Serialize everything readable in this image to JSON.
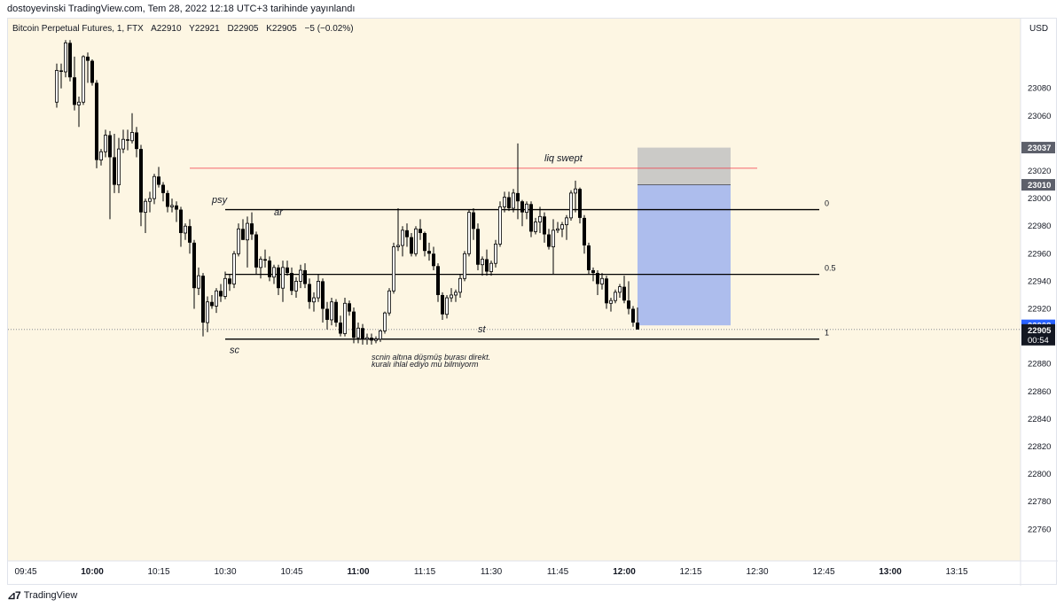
{
  "header": {
    "published_by": "dostoyevinski TradingView.com, Tem 28, 2022 12:18 UTC+3 tarihinde yayınlandı"
  },
  "symbol_info": {
    "name": "Bitcoin Perpetual Futures, 1, FTX",
    "open": "A22910",
    "high": "Y22921",
    "low": "D22905",
    "close": "K22905",
    "change": "−5 (−0.02%)"
  },
  "footer": {
    "brand": "TradingView"
  },
  "chart_data": {
    "type": "candlestick",
    "currency": "USD",
    "y_ticks": [
      22760,
      22780,
      22800,
      22820,
      22840,
      22860,
      22880,
      22920,
      22940,
      22960,
      22980,
      23000,
      23020,
      23060,
      23080
    ],
    "x_ticks": [
      {
        "time": "09:45",
        "bold": false
      },
      {
        "time": "10:00",
        "bold": true
      },
      {
        "time": "10:15",
        "bold": false
      },
      {
        "time": "10:30",
        "bold": false
      },
      {
        "time": "10:45",
        "bold": false
      },
      {
        "time": "11:00",
        "bold": true
      },
      {
        "time": "11:15",
        "bold": false
      },
      {
        "time": "11:30",
        "bold": false
      },
      {
        "time": "11:45",
        "bold": false
      },
      {
        "time": "12:00",
        "bold": true
      },
      {
        "time": "12:15",
        "bold": false
      },
      {
        "time": "12:30",
        "bold": false
      },
      {
        "time": "12:45",
        "bold": false
      },
      {
        "time": "13:00",
        "bold": true
      },
      {
        "time": "13:15",
        "bold": false
      }
    ],
    "first_candle_time": "09:52",
    "candles": [
      [
        23070,
        23098,
        23066,
        23093
      ],
      [
        23093,
        23098,
        23080,
        23092
      ],
      [
        23092,
        23115,
        23088,
        23113
      ],
      [
        23113,
        23115,
        23085,
        23088
      ],
      [
        23088,
        23103,
        23064,
        23068
      ],
      [
        23068,
        23074,
        23052,
        23070
      ],
      [
        23070,
        23104,
        23068,
        23103
      ],
      [
        23103,
        23106,
        23084,
        23100
      ],
      [
        23100,
        23101,
        23082,
        23084
      ],
      [
        23084,
        23086,
        23022,
        23028
      ],
      [
        23028,
        23036,
        23024,
        23034
      ],
      [
        23034,
        23050,
        23030,
        23046
      ],
      [
        23046,
        23049,
        22985,
        23030
      ],
      [
        23030,
        23047,
        23004,
        23010
      ],
      [
        23010,
        23044,
        23004,
        23036
      ],
      [
        23036,
        23050,
        23033,
        23043
      ],
      [
        23043,
        23050,
        23035,
        23042
      ],
      [
        23042,
        23062,
        23040,
        23048
      ],
      [
        23048,
        23052,
        23030,
        23036
      ],
      [
        23036,
        23039,
        22980,
        22990
      ],
      [
        22990,
        23000,
        22975,
        22998
      ],
      [
        22998,
        23005,
        22990,
        23000
      ],
      [
        23000,
        23018,
        22996,
        23016
      ],
      [
        23016,
        23023,
        23008,
        23010
      ],
      [
        23010,
        23012,
        22998,
        23004
      ],
      [
        23004,
        23006,
        22990,
        22994
      ],
      [
        22994,
        23000,
        22990,
        22995
      ],
      [
        22995,
        22998,
        22983,
        22992
      ],
      [
        22992,
        22994,
        22965,
        22975
      ],
      [
        22975,
        22982,
        22970,
        22980
      ],
      [
        22980,
        22985,
        22960,
        22968
      ],
      [
        22968,
        22970,
        22920,
        22935
      ],
      [
        22935,
        22950,
        22930,
        22944
      ],
      [
        22944,
        22946,
        22900,
        22910
      ],
      [
        22910,
        22929,
        22903,
        22925
      ],
      [
        22925,
        22930,
        22920,
        22922
      ],
      [
        22922,
        22935,
        22917,
        22933
      ],
      [
        22933,
        22938,
        22925,
        22929
      ],
      [
        22929,
        22947,
        22927,
        22942
      ],
      [
        22942,
        22945,
        22933,
        22938
      ],
      [
        22938,
        22962,
        22935,
        22960
      ],
      [
        22960,
        22982,
        22958,
        22978
      ],
      [
        22978,
        22985,
        22970,
        22970
      ],
      [
        22970,
        22987,
        22950,
        22982
      ],
      [
        22982,
        22990,
        22970,
        22974
      ],
      [
        22974,
        22976,
        22945,
        22950
      ],
      [
        22950,
        22958,
        22942,
        22956
      ],
      [
        22956,
        22963,
        22950,
        22955
      ],
      [
        22955,
        22958,
        22940,
        22943
      ],
      [
        22943,
        22952,
        22938,
        22950
      ],
      [
        22950,
        22952,
        22930,
        22935
      ],
      [
        22935,
        22955,
        22925,
        22950
      ],
      [
        22950,
        22955,
        22944,
        22946
      ],
      [
        22946,
        22950,
        22930,
        22933
      ],
      [
        22933,
        22943,
        22928,
        22940
      ],
      [
        22940,
        22952,
        22935,
        22948
      ],
      [
        22948,
        22953,
        22935,
        22938
      ],
      [
        22938,
        22942,
        22920,
        22925
      ],
      [
        22925,
        22932,
        22918,
        22928
      ],
      [
        22928,
        22945,
        22925,
        22940
      ],
      [
        22940,
        22942,
        22910,
        22920
      ],
      [
        22920,
        22925,
        22905,
        22912
      ],
      [
        22912,
        22928,
        22908,
        22925
      ],
      [
        22925,
        22927,
        22907,
        22910
      ],
      [
        22910,
        22915,
        22900,
        22902
      ],
      [
        22902,
        22928,
        22900,
        22924
      ],
      [
        22924,
        22926,
        22915,
        22918
      ],
      [
        22918,
        22921,
        22895,
        22899
      ],
      [
        22899,
        22910,
        22895,
        22906
      ],
      [
        22906,
        22909,
        22894,
        22898
      ],
      [
        22898,
        22902,
        22894,
        22899
      ],
      [
        22899,
        22902,
        22894,
        22897
      ],
      [
        22897,
        22900,
        22895,
        22898
      ],
      [
        22898,
        22905,
        22896,
        22904
      ],
      [
        22904,
        22918,
        22902,
        22917
      ],
      [
        22917,
        22935,
        22915,
        22933
      ],
      [
        22933,
        22968,
        22931,
        22965
      ],
      [
        22965,
        22993,
        22962,
        22966
      ],
      [
        22966,
        22980,
        22958,
        22977
      ],
      [
        22977,
        22982,
        22965,
        22972
      ],
      [
        22972,
        22975,
        22958,
        22960
      ],
      [
        22960,
        22980,
        22958,
        22978
      ],
      [
        22978,
        22985,
        22970,
        22975
      ],
      [
        22975,
        22976,
        22958,
        22962
      ],
      [
        22962,
        22968,
        22955,
        22960
      ],
      [
        22960,
        22965,
        22948,
        22951
      ],
      [
        22951,
        22953,
        22925,
        22930
      ],
      [
        22930,
        22932,
        22912,
        22916
      ],
      [
        22916,
        22930,
        22913,
        22928
      ],
      [
        22928,
        22935,
        22925,
        22930
      ],
      [
        22930,
        22934,
        22925,
        22932
      ],
      [
        22932,
        22945,
        22928,
        22942
      ],
      [
        22942,
        22962,
        22940,
        22960
      ],
      [
        22960,
        22992,
        22958,
        22990
      ],
      [
        22990,
        22993,
        22970,
        22978
      ],
      [
        22978,
        22982,
        22948,
        22952
      ],
      [
        22952,
        22958,
        22944,
        22956
      ],
      [
        22956,
        22963,
        22944,
        22947
      ],
      [
        22947,
        22955,
        22944,
        22953
      ],
      [
        22953,
        22970,
        22950,
        22967
      ],
      [
        22967,
        22998,
        22965,
        22994
      ],
      [
        22994,
        23005,
        22990,
        23001
      ],
      [
        23001,
        23005,
        22991,
        22993
      ],
      [
        22993,
        23007,
        22990,
        23004
      ],
      [
        23004,
        23040,
        22985,
        22998
      ],
      [
        22998,
        22999,
        22980,
        22990
      ],
      [
        22990,
        22998,
        22985,
        22996
      ],
      [
        22996,
        22998,
        22972,
        22976
      ],
      [
        22976,
        22986,
        22974,
        22983
      ],
      [
        22983,
        22994,
        22975,
        22987
      ],
      [
        22987,
        22990,
        22968,
        22974
      ],
      [
        22974,
        22978,
        22963,
        22965
      ],
      [
        22965,
        22985,
        22945,
        22977
      ],
      [
        22977,
        22983,
        22975,
        22978
      ],
      [
        22978,
        22983,
        22972,
        22981
      ],
      [
        22981,
        22988,
        22970,
        22986
      ],
      [
        22986,
        23006,
        22984,
        23004
      ],
      [
        23004,
        23013,
        22990,
        23007
      ],
      [
        23007,
        23008,
        22982,
        22986
      ],
      [
        22986,
        22988,
        22960,
        22966
      ],
      [
        22966,
        22968,
        22945,
        22948
      ],
      [
        22948,
        22950,
        22940,
        22946
      ],
      [
        22946,
        22948,
        22930,
        22938
      ],
      [
        22938,
        22946,
        22934,
        22942
      ],
      [
        22942,
        22944,
        22920,
        22924
      ],
      [
        22924,
        22928,
        22918,
        22926
      ],
      [
        22926,
        22934,
        22924,
        22932
      ],
      [
        22932,
        22938,
        22928,
        22936
      ],
      [
        22936,
        22944,
        22924,
        22926
      ],
      [
        22926,
        22940,
        22916,
        22920
      ],
      [
        22920,
        22922,
        22907,
        22910
      ],
      [
        22910,
        22921,
        22905,
        22905
      ]
    ],
    "horizontal_lines": [
      {
        "price": 22992,
        "start": "10:30",
        "end": "12:44",
        "label": "0"
      },
      {
        "price": 22945,
        "start": "10:30",
        "end": "12:44",
        "label": "0.5"
      },
      {
        "price": 22898,
        "start": "10:30",
        "end": "12:44",
        "label": "1"
      },
      {
        "price": 23022,
        "start": "10:22",
        "end": "12:30",
        "color": "#f23645"
      }
    ],
    "position": {
      "start": "12:03",
      "end": "12:24",
      "stop_price": 23037,
      "entry_price": 23010,
      "target_price": 22908
    },
    "annotations": [
      {
        "text": "psy",
        "time": "10:27",
        "price": 22997
      },
      {
        "text": "ar",
        "time": "10:41",
        "price": 22988
      },
      {
        "text": "liq swept",
        "time": "11:42",
        "price": 23027
      },
      {
        "text": "st",
        "time": "11:27",
        "price": 22903
      },
      {
        "text": "sc",
        "time": "10:31",
        "price": 22888
      },
      {
        "text": "scnin altına düşmüş burası direkt.",
        "time": "11:03",
        "price": 22883
      },
      {
        "text": "kuralı ihlal ediyo mu bilmiyorm",
        "time": "11:03",
        "price": 22878
      }
    ],
    "price_labels": [
      {
        "price": 23037,
        "text": "23037",
        "bg": "#5d606b",
        "fg": "#ffffff"
      },
      {
        "price": 23010,
        "text": "23010",
        "bg": "#5d606b",
        "fg": "#ffffff"
      },
      {
        "price": 22908,
        "text": "22908",
        "bg": "#2962ff",
        "fg": "#ffffff"
      },
      {
        "price": 22905,
        "text": "22905",
        "sub": "00:54",
        "bg": "#131722",
        "fg": "#ffffff"
      }
    ],
    "colors": {
      "background": "#fdf6e3",
      "candle": "#000000",
      "stop_zone": "#c2c2c2",
      "target_zone": "#2962ff",
      "liq_line": "#f23645",
      "last_price_line": "#787b86"
    }
  }
}
